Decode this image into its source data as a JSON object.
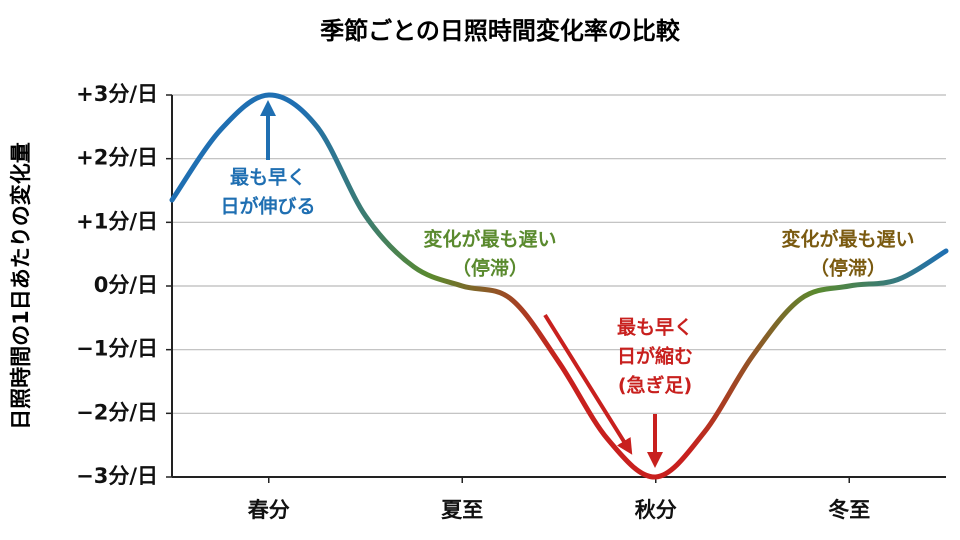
{
  "chart_data": {
    "type": "line",
    "title": "季節ごとの日照時間変化率の比較",
    "y_label": "日照時間の1日あたりの変化量",
    "x": [
      -0.5,
      -0.25,
      0,
      0.25,
      0.5,
      0.75,
      1,
      1.25,
      1.5,
      1.75,
      2,
      2.25,
      2.5,
      2.75,
      3,
      3.25,
      3.5
    ],
    "values": [
      1.35,
      2.45,
      3,
      2.5,
      1.1,
      0.3,
      0,
      -0.2,
      -1.2,
      -2.4,
      -3,
      -2.3,
      -1.1,
      -0.2,
      0,
      0.1,
      0.55
    ],
    "gradient_colors": [
      "#1f6fb2",
      "#1f6fb2",
      "#5a8a2e",
      "#c8201e",
      "#c8201e",
      "#5a8a2e",
      "#1f6fb2"
    ],
    "xlim": [
      -0.5,
      3.5
    ],
    "xticks": [
      {
        "value": 0,
        "label": "春分"
      },
      {
        "value": 1,
        "label": "夏至"
      },
      {
        "value": 2,
        "label": "秋分"
      },
      {
        "value": 3,
        "label": "冬至"
      }
    ],
    "ylim": [
      -3,
      3
    ],
    "yticks": [
      {
        "value": 3,
        "label": "+3分/日"
      },
      {
        "value": 2,
        "label": "+2分/日"
      },
      {
        "value": 1,
        "label": "+1分/日"
      },
      {
        "value": 0,
        "label": "0分/日"
      },
      {
        "value": -1,
        "label": "−1分/日"
      },
      {
        "value": -2,
        "label": "−2分/日"
      },
      {
        "value": -3,
        "label": "−3分/日"
      }
    ],
    "grid": true,
    "annotations": [
      {
        "lines": [
          "最も早く",
          "日が伸びる"
        ],
        "color": "#1f6fb2"
      },
      {
        "lines": [
          "変化が最も遅い",
          "（停滞）"
        ],
        "color": "#5a8a2e"
      },
      {
        "lines": [
          "最も早く",
          "日が縮む",
          "(急ぎ足)"
        ],
        "color": "#c8201e"
      },
      {
        "lines": [
          "変化が最も遅い",
          "（停滞）"
        ],
        "color": "#7a5a10"
      }
    ]
  }
}
